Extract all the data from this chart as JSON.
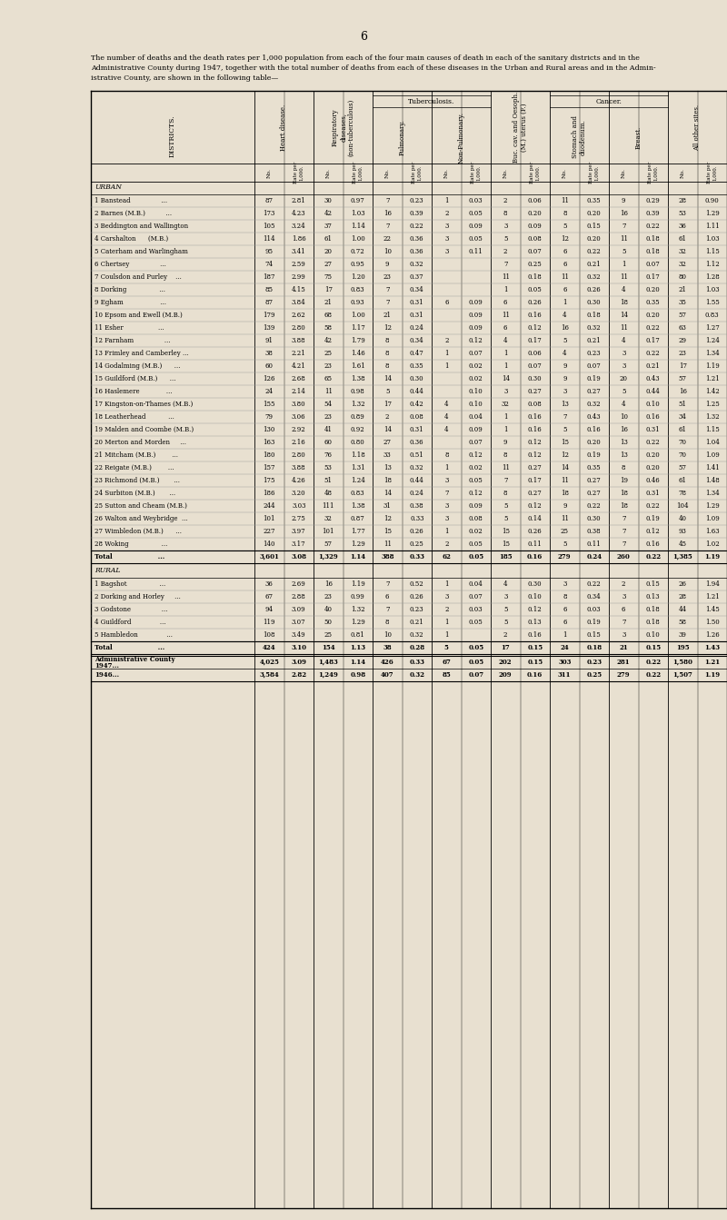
{
  "page_number": "6",
  "bg_color": "#e8e0d0",
  "title_lines": [
    "The number of deaths and the death rates per 1,000 population from each of the four main causes of death in each of the sanitary districts and in the",
    "Administrative County during 1947, together with the total number of deaths from each of these diseases in the Urban and Rural areas and in the Admin-",
    "istrative County, are shown in the following table—"
  ],
  "urban_districts": [
    {
      "name": "1 Banstead               ...",
      "hd_no": "87",
      "hd_rate": "2.81",
      "resp_no": "30",
      "resp_rate": "0.97",
      "tb_p_no": "7",
      "tb_p_rate": "0.23",
      "tb_np_no": "1",
      "tb_np_rate": "0.03",
      "buc_no": "2",
      "buc_rate": "0.06",
      "stom_no": "11",
      "stom_rate": "0.35",
      "br_no": "9",
      "br_rate": "0.29",
      "oth_no": "28",
      "oth_rate": "0.90"
    },
    {
      "name": "2 Barnes (M.B.)          ...",
      "hd_no": "173",
      "hd_rate": "4.23",
      "resp_no": "42",
      "resp_rate": "1.03",
      "tb_p_no": "16",
      "tb_p_rate": "0.39",
      "tb_np_no": "2",
      "tb_np_rate": "0.05",
      "buc_no": "8",
      "buc_rate": "0.20",
      "stom_no": "8",
      "stom_rate": "0.20",
      "br_no": "16",
      "br_rate": "0.39",
      "oth_no": "53",
      "oth_rate": "1.29"
    },
    {
      "name": "3 Beddington and Wallington",
      "hd_no": "105",
      "hd_rate": "3.24",
      "resp_no": "37",
      "resp_rate": "1.14",
      "tb_p_no": "7",
      "tb_p_rate": "0.22",
      "tb_np_no": "3",
      "tb_np_rate": "0.09",
      "buc_no": "3",
      "buc_rate": "0.09",
      "stom_no": "5",
      "stom_rate": "0.15",
      "br_no": "7",
      "br_rate": "0.22",
      "oth_no": "36",
      "oth_rate": "1.11"
    },
    {
      "name": "4 Carshalton      (M.B.)",
      "hd_no": "114",
      "hd_rate": "1.86",
      "resp_no": "61",
      "resp_rate": "1.00",
      "tb_p_no": "22",
      "tb_p_rate": "0.36",
      "tb_np_no": "3",
      "tb_np_rate": "0.05",
      "buc_no": "5",
      "buc_rate": "0.08",
      "stom_no": "12",
      "stom_rate": "0.20",
      "br_no": "11",
      "br_rate": "0.18",
      "oth_no": "61",
      "oth_rate": "1.03"
    },
    {
      "name": "5 Caterham and Warlingham",
      "hd_no": "95",
      "hd_rate": "3.41",
      "resp_no": "20",
      "resp_rate": "0.72",
      "tb_p_no": "10",
      "tb_p_rate": "0.36",
      "tb_np_no": "3",
      "tb_np_rate": "0.11",
      "buc_no": "2",
      "buc_rate": "0.07",
      "stom_no": "6",
      "stom_rate": "0.22",
      "br_no": "5",
      "br_rate": "0.18",
      "oth_no": "32",
      "oth_rate": "1.15"
    },
    {
      "name": "6 Chertsey               ...",
      "hd_no": "74",
      "hd_rate": "2.59",
      "resp_no": "27",
      "resp_rate": "0.95",
      "tb_p_no": "9",
      "tb_p_rate": "0.32",
      "tb_np_no": "",
      "tb_np_rate": "",
      "buc_no": "7",
      "buc_rate": "0.25",
      "stom_no": "6",
      "stom_rate": "0.21",
      "br_no": "1",
      "br_rate": "0.07",
      "oth_no": "32",
      "oth_rate": "1.12"
    },
    {
      "name": "7 Coulsdon and Purley    ...",
      "hd_no": "187",
      "hd_rate": "2.99",
      "resp_no": "75",
      "resp_rate": "1.20",
      "tb_p_no": "23",
      "tb_p_rate": "0.37",
      "tb_np_no": "",
      "tb_np_rate": "",
      "buc_no": "11",
      "buc_rate": "0.18",
      "stom_no": "11",
      "stom_rate": "0.32",
      "br_no": "11",
      "br_rate": "0.17",
      "oth_no": "80",
      "oth_rate": "1.28"
    },
    {
      "name": "8 Dorking                ...",
      "hd_no": "85",
      "hd_rate": "4.15",
      "resp_no": "17",
      "resp_rate": "0.83",
      "tb_p_no": "7",
      "tb_p_rate": "0.34",
      "tb_np_no": "",
      "tb_np_rate": "",
      "buc_no": "1",
      "buc_rate": "0.05",
      "stom_no": "6",
      "stom_rate": "0.26",
      "br_no": "4",
      "br_rate": "0.20",
      "oth_no": "21",
      "oth_rate": "1.03"
    },
    {
      "name": "9 Egham                  ...",
      "hd_no": "87",
      "hd_rate": "3.84",
      "resp_no": "21",
      "resp_rate": "0.93",
      "tb_p_no": "7",
      "tb_p_rate": "0.31",
      "tb_np_no": "6",
      "tb_np_rate": "0.09",
      "buc_no": "6",
      "buc_rate": "0.26",
      "stom_no": "1",
      "stom_rate": "0.30",
      "br_no": "18",
      "br_rate": "0.35",
      "oth_no": "35",
      "oth_rate": "1.55"
    },
    {
      "name": "10 Epsom and Ewell (M.B.)",
      "hd_no": "179",
      "hd_rate": "2.62",
      "resp_no": "68",
      "resp_rate": "1.00",
      "tb_p_no": "21",
      "tb_p_rate": "0.31",
      "tb_np_no": "",
      "tb_np_rate": "0.09",
      "buc_no": "11",
      "buc_rate": "0.16",
      "stom_no": "4",
      "stom_rate": "0.18",
      "br_no": "14",
      "br_rate": "0.20",
      "oth_no": "57",
      "oth_rate": "0.83"
    },
    {
      "name": "11 Esher                 ...",
      "hd_no": "139",
      "hd_rate": "2.80",
      "resp_no": "58",
      "resp_rate": "1.17",
      "tb_p_no": "12",
      "tb_p_rate": "0.24",
      "tb_np_no": "",
      "tb_np_rate": "0.09",
      "buc_no": "6",
      "buc_rate": "0.12",
      "stom_no": "16",
      "stom_rate": "0.32",
      "br_no": "11",
      "br_rate": "0.22",
      "oth_no": "63",
      "oth_rate": "1.27"
    },
    {
      "name": "12 Farnham               ...",
      "hd_no": "91",
      "hd_rate": "3.88",
      "resp_no": "42",
      "resp_rate": "1.79",
      "tb_p_no": "8",
      "tb_p_rate": "0.34",
      "tb_np_no": "2",
      "tb_np_rate": "0.12",
      "buc_no": "4",
      "buc_rate": "0.17",
      "stom_no": "5",
      "stom_rate": "0.21",
      "br_no": "4",
      "br_rate": "0.17",
      "oth_no": "29",
      "oth_rate": "1.24"
    },
    {
      "name": "13 Frimley and Camberley ...",
      "hd_no": "38",
      "hd_rate": "2.21",
      "resp_no": "25",
      "resp_rate": "1.46",
      "tb_p_no": "8",
      "tb_p_rate": "0.47",
      "tb_np_no": "1",
      "tb_np_rate": "0.07",
      "buc_no": "1",
      "buc_rate": "0.06",
      "stom_no": "4",
      "stom_rate": "0.23",
      "br_no": "3",
      "br_rate": "0.22",
      "oth_no": "23",
      "oth_rate": "1.34"
    },
    {
      "name": "14 Godalming (M.B.)      ...",
      "hd_no": "60",
      "hd_rate": "4.21",
      "resp_no": "23",
      "resp_rate": "1.61",
      "tb_p_no": "8",
      "tb_p_rate": "0.35",
      "tb_np_no": "1",
      "tb_np_rate": "0.02",
      "buc_no": "1",
      "buc_rate": "0.07",
      "stom_no": "9",
      "stom_rate": "0.07",
      "br_no": "3",
      "br_rate": "0.21",
      "oth_no": "17",
      "oth_rate": "1.19"
    },
    {
      "name": "15 Guildford (M.B.)      ...",
      "hd_no": "126",
      "hd_rate": "2.68",
      "resp_no": "65",
      "resp_rate": "1.38",
      "tb_p_no": "14",
      "tb_p_rate": "0.30",
      "tb_np_no": "",
      "tb_np_rate": "0.02",
      "buc_no": "14",
      "buc_rate": "0.30",
      "stom_no": "9",
      "stom_rate": "0.19",
      "br_no": "20",
      "br_rate": "0.43",
      "oth_no": "57",
      "oth_rate": "1.21"
    },
    {
      "name": "16 Haslemere             ...",
      "hd_no": "24",
      "hd_rate": "2.14",
      "resp_no": "11",
      "resp_rate": "0.98",
      "tb_p_no": "5",
      "tb_p_rate": "0.44",
      "tb_np_no": "",
      "tb_np_rate": "0.10",
      "buc_no": "3",
      "buc_rate": "0.27",
      "stom_no": "3",
      "stom_rate": "0.27",
      "br_no": "5",
      "br_rate": "0.44",
      "oth_no": "16",
      "oth_rate": "1.42"
    },
    {
      "name": "17 Kingston-on-Thames (M.B.)",
      "hd_no": "155",
      "hd_rate": "3.80",
      "resp_no": "54",
      "resp_rate": "1.32",
      "tb_p_no": "17",
      "tb_p_rate": "0.42",
      "tb_np_no": "4",
      "tb_np_rate": "0.10",
      "buc_no": "32",
      "buc_rate": "0.08",
      "stom_no": "13",
      "stom_rate": "0.32",
      "br_no": "4",
      "br_rate": "0.10",
      "oth_no": "51",
      "oth_rate": "1.25"
    },
    {
      "name": "18 Leatherhead           ...",
      "hd_no": "79",
      "hd_rate": "3.06",
      "resp_no": "23",
      "resp_rate": "0.89",
      "tb_p_no": "2",
      "tb_p_rate": "0.08",
      "tb_np_no": "4",
      "tb_np_rate": "0.04",
      "buc_no": "1",
      "buc_rate": "0.16",
      "stom_no": "7",
      "stom_rate": "0.43",
      "br_no": "10",
      "br_rate": "0.16",
      "oth_no": "34",
      "oth_rate": "1.32"
    },
    {
      "name": "19 Malden and Coombe (M.B.)",
      "hd_no": "130",
      "hd_rate": "2.92",
      "resp_no": "41",
      "resp_rate": "0.92",
      "tb_p_no": "14",
      "tb_p_rate": "0.31",
      "tb_np_no": "4",
      "tb_np_rate": "0.09",
      "buc_no": "1",
      "buc_rate": "0.16",
      "stom_no": "5",
      "stom_rate": "0.16",
      "br_no": "16",
      "br_rate": "0.31",
      "oth_no": "61",
      "oth_rate": "1.15"
    },
    {
      "name": "20 Merton and Morden     ...",
      "hd_no": "163",
      "hd_rate": "2.16",
      "resp_no": "60",
      "resp_rate": "0.80",
      "tb_p_no": "27",
      "tb_p_rate": "0.36",
      "tb_np_no": "",
      "tb_np_rate": "0.07",
      "buc_no": "9",
      "buc_rate": "0.12",
      "stom_no": "15",
      "stom_rate": "0.20",
      "br_no": "13",
      "br_rate": "0.22",
      "oth_no": "70",
      "oth_rate": "1.04"
    },
    {
      "name": "21 Mitcham (M.B.)        ...",
      "hd_no": "180",
      "hd_rate": "2.80",
      "resp_no": "76",
      "resp_rate": "1.18",
      "tb_p_no": "33",
      "tb_p_rate": "0.51",
      "tb_np_no": "8",
      "tb_np_rate": "0.12",
      "buc_no": "8",
      "buc_rate": "0.12",
      "stom_no": "12",
      "stom_rate": "0.19",
      "br_no": "13",
      "br_rate": "0.20",
      "oth_no": "70",
      "oth_rate": "1.09"
    },
    {
      "name": "22 Reigate (M.B.)        ...",
      "hd_no": "157",
      "hd_rate": "3.88",
      "resp_no": "53",
      "resp_rate": "1.31",
      "tb_p_no": "13",
      "tb_p_rate": "0.32",
      "tb_np_no": "1",
      "tb_np_rate": "0.02",
      "buc_no": "11",
      "buc_rate": "0.27",
      "stom_no": "14",
      "stom_rate": "0.35",
      "br_no": "8",
      "br_rate": "0.20",
      "oth_no": "57",
      "oth_rate": "1.41"
    },
    {
      "name": "23 Richmond (M.B.)       ...",
      "hd_no": "175",
      "hd_rate": "4.26",
      "resp_no": "51",
      "resp_rate": "1.24",
      "tb_p_no": "18",
      "tb_p_rate": "0.44",
      "tb_np_no": "3",
      "tb_np_rate": "0.05",
      "buc_no": "7",
      "buc_rate": "0.17",
      "stom_no": "11",
      "stom_rate": "0.27",
      "br_no": "19",
      "br_rate": "0.46",
      "oth_no": "61",
      "oth_rate": "1.48"
    },
    {
      "name": "24 Surbiton (M.B.)       ...",
      "hd_no": "186",
      "hd_rate": "3.20",
      "resp_no": "48",
      "resp_rate": "0.83",
      "tb_p_no": "14",
      "tb_p_rate": "0.24",
      "tb_np_no": "7",
      "tb_np_rate": "0.12",
      "buc_no": "8",
      "buc_rate": "0.27",
      "stom_no": "18",
      "stom_rate": "0.27",
      "br_no": "18",
      "br_rate": "0.31",
      "oth_no": "78",
      "oth_rate": "1.34"
    },
    {
      "name": "25 Sutton and Cheam (M.B.)",
      "hd_no": "244",
      "hd_rate": "3.03",
      "resp_no": "111",
      "resp_rate": "1.38",
      "tb_p_no": "31",
      "tb_p_rate": "0.38",
      "tb_np_no": "3",
      "tb_np_rate": "0.09",
      "buc_no": "5",
      "buc_rate": "0.12",
      "stom_no": "9",
      "stom_rate": "0.22",
      "br_no": "18",
      "br_rate": "0.22",
      "oth_no": "104",
      "oth_rate": "1.29"
    },
    {
      "name": "26 Walton and Weybridge  ...",
      "hd_no": "101",
      "hd_rate": "2.75",
      "resp_no": "32",
      "resp_rate": "0.87",
      "tb_p_no": "12",
      "tb_p_rate": "0.33",
      "tb_np_no": "3",
      "tb_np_rate": "0.08",
      "buc_no": "5",
      "buc_rate": "0.14",
      "stom_no": "11",
      "stom_rate": "0.30",
      "br_no": "7",
      "br_rate": "0.19",
      "oth_no": "40",
      "oth_rate": "1.09"
    },
    {
      "name": "27 Wimbledon (M.B.)      ...",
      "hd_no": "227",
      "hd_rate": "3.97",
      "resp_no": "101",
      "resp_rate": "1.77",
      "tb_p_no": "15",
      "tb_p_rate": "0.26",
      "tb_np_no": "1",
      "tb_np_rate": "0.02",
      "buc_no": "15",
      "buc_rate": "0.26",
      "stom_no": "25",
      "stom_rate": "0.38",
      "br_no": "7",
      "br_rate": "0.12",
      "oth_no": "93",
      "oth_rate": "1.63"
    },
    {
      "name": "28 Woking                ...",
      "hd_no": "140",
      "hd_rate": "3.17",
      "resp_no": "57",
      "resp_rate": "1.29",
      "tb_p_no": "11",
      "tb_p_rate": "0.25",
      "tb_np_no": "2",
      "tb_np_rate": "0.05",
      "buc_no": "15",
      "buc_rate": "0.11",
      "stom_no": "5",
      "stom_rate": "0.11",
      "br_no": "7",
      "br_rate": "0.16",
      "oth_no": "45",
      "oth_rate": "1.02"
    }
  ],
  "urban_total": {
    "name": "Total                    ...",
    "hd_no": "3,601",
    "hd_rate": "3.08",
    "resp_no": "1,329",
    "resp_rate": "1.14",
    "tb_p_no": "388",
    "tb_p_rate": "0.33",
    "tb_np_no": "62",
    "tb_np_rate": "0.05",
    "buc_no": "185",
    "buc_rate": "0.16",
    "stom_no": "279",
    "stom_rate": "0.24",
    "br_no": "260",
    "br_rate": "0.22",
    "oth_no": "1,385",
    "oth_rate": "1.19"
  },
  "rural_districts": [
    {
      "name": "1 Bagshot                ...",
      "hd_no": "36",
      "hd_rate": "2.69",
      "resp_no": "16",
      "resp_rate": "1.19",
      "tb_p_no": "7",
      "tb_p_rate": "0.52",
      "tb_np_no": "1",
      "tb_np_rate": "0.04",
      "buc_no": "4",
      "buc_rate": "0.30",
      "stom_no": "3",
      "stom_rate": "0.22",
      "br_no": "2",
      "br_rate": "0.15",
      "oth_no": "26",
      "oth_rate": "1.94"
    },
    {
      "name": "2 Dorking and Horley     ...",
      "hd_no": "67",
      "hd_rate": "2.88",
      "resp_no": "23",
      "resp_rate": "0.99",
      "tb_p_no": "6",
      "tb_p_rate": "0.26",
      "tb_np_no": "3",
      "tb_np_rate": "0.07",
      "buc_no": "3",
      "buc_rate": "0.10",
      "stom_no": "8",
      "stom_rate": "0.34",
      "br_no": "3",
      "br_rate": "0.13",
      "oth_no": "28",
      "oth_rate": "1.21"
    },
    {
      "name": "3 Godstone               ...",
      "hd_no": "94",
      "hd_rate": "3.09",
      "resp_no": "40",
      "resp_rate": "1.32",
      "tb_p_no": "7",
      "tb_p_rate": "0.23",
      "tb_np_no": "2",
      "tb_np_rate": "0.03",
      "buc_no": "5",
      "buc_rate": "0.12",
      "stom_no": "6",
      "stom_rate": "0.03",
      "br_no": "6",
      "br_rate": "0.18",
      "oth_no": "44",
      "oth_rate": "1.45"
    },
    {
      "name": "4 Guildford              ...",
      "hd_no": "119",
      "hd_rate": "3.07",
      "resp_no": "50",
      "resp_rate": "1.29",
      "tb_p_no": "8",
      "tb_p_rate": "0.21",
      "tb_np_no": "1",
      "tb_np_rate": "0.05",
      "buc_no": "5",
      "buc_rate": "0.13",
      "stom_no": "6",
      "stom_rate": "0.19",
      "br_no": "7",
      "br_rate": "0.18",
      "oth_no": "58",
      "oth_rate": "1.50"
    },
    {
      "name": "5 Hambledon              ...",
      "hd_no": "108",
      "hd_rate": "3.49",
      "resp_no": "25",
      "resp_rate": "0.81",
      "tb_p_no": "10",
      "tb_p_rate": "0.32",
      "tb_np_no": "1",
      "tb_np_rate": "",
      "buc_no": "2",
      "buc_rate": "0.16",
      "stom_no": "1",
      "stom_rate": "0.15",
      "br_no": "3",
      "br_rate": "0.10",
      "oth_no": "39",
      "oth_rate": "1.26"
    }
  ],
  "rural_total": {
    "name": "Total                    ...",
    "hd_no": "424",
    "hd_rate": "3.10",
    "resp_no": "154",
    "resp_rate": "1.13",
    "tb_p_no": "38",
    "tb_p_rate": "0.28",
    "tb_np_no": "5",
    "tb_np_rate": "0.05",
    "buc_no": "17",
    "buc_rate": "0.15",
    "stom_no": "24",
    "stom_rate": "0.18",
    "br_no": "21",
    "br_rate": "0.15",
    "oth_no": "195",
    "oth_rate": "1.43"
  },
  "admin_1947": {
    "name": "Administrative County",
    "name2": "1947...",
    "hd_no": "4,025",
    "hd_rate": "3.09",
    "resp_no": "1,483",
    "resp_rate": "1.14",
    "tb_p_no": "426",
    "tb_p_rate": "0.33",
    "tb_np_no": "67",
    "tb_np_rate": "0.05",
    "buc_no": "202",
    "buc_rate": "0.15",
    "stom_no": "303",
    "stom_rate": "0.23",
    "br_no": "281",
    "br_rate": "0.22",
    "oth_no": "1,580",
    "oth_rate": "1.21"
  },
  "admin_1946": {
    "name": "1946...",
    "hd_no": "3,584",
    "hd_rate": "2.82",
    "resp_no": "1,249",
    "resp_rate": "0.98",
    "tb_p_no": "407",
    "tb_p_rate": "0.32",
    "tb_np_no": "85",
    "tb_np_rate": "0.07",
    "buc_no": "209",
    "buc_rate": "0.16",
    "stom_no": "311",
    "stom_rate": "0.25",
    "br_no": "279",
    "br_rate": "0.22",
    "oth_no": "1,507",
    "oth_rate": "1.19"
  }
}
